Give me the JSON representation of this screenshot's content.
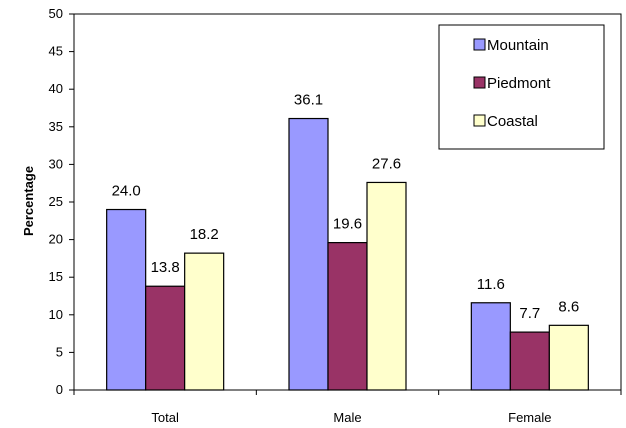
{
  "chart_data": {
    "type": "bar",
    "categories": [
      "Total",
      "Male",
      "Female"
    ],
    "series": [
      {
        "name": "Mountain",
        "values": [
          24.0,
          36.1,
          11.6
        ],
        "color": "#9999ff"
      },
      {
        "name": "Piedmont",
        "values": [
          13.8,
          19.6,
          7.7
        ],
        "color": "#993366"
      },
      {
        "name": "Coastal",
        "values": [
          18.2,
          27.6,
          8.6
        ],
        "color": "#ffffcc"
      }
    ],
    "data_labels": [
      [
        "24.0",
        "13.8",
        "18.2"
      ],
      [
        "36.1",
        "19.6",
        "27.6"
      ],
      [
        "11.6",
        "7.7",
        "8.6"
      ]
    ],
    "title": "",
    "xlabel": "",
    "ylabel": "Percentage",
    "ylim": [
      0,
      50
    ],
    "yticks": [
      "0",
      "5",
      "10",
      "15",
      "20",
      "25",
      "30",
      "35",
      "40",
      "45",
      "50"
    ],
    "grid": false,
    "legend_position": "top-right"
  }
}
